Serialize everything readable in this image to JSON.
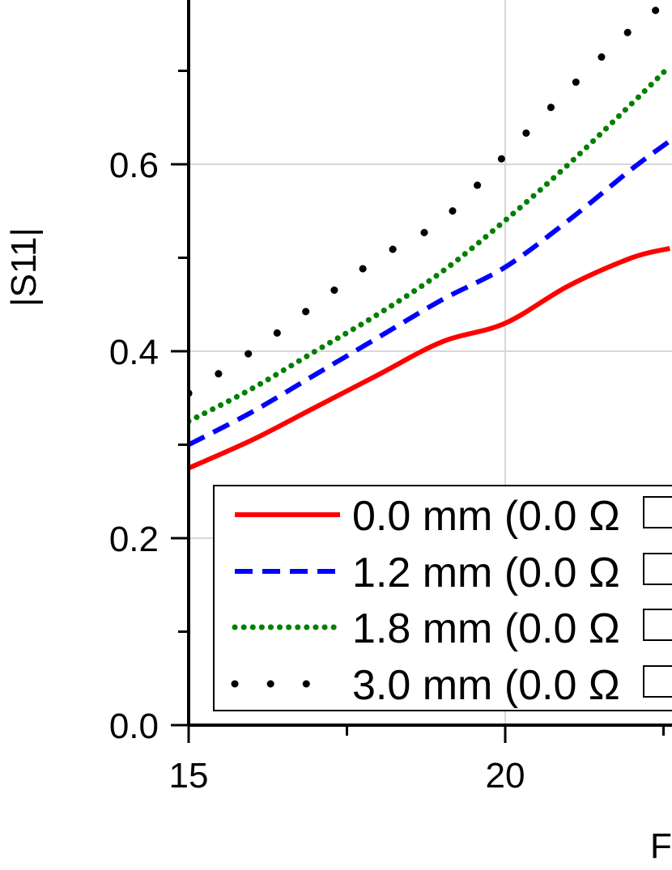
{
  "chart_data": {
    "type": "line",
    "title": "",
    "xlabel": "F",
    "ylabel": "|S11|",
    "xlim": [
      15,
      22.6
    ],
    "ylim": [
      0.0,
      0.77
    ],
    "x_ticks": [
      15,
      20
    ],
    "x_tick_labels": [
      "15",
      "20"
    ],
    "x_minor_ticks": [
      17.5,
      22.5
    ],
    "y_ticks": [
      0.0,
      0.2,
      0.4,
      0.6
    ],
    "y_tick_labels": [
      "0.0",
      "0.2",
      "0.4",
      "0.6"
    ],
    "y_minor_ticks": [
      0.1,
      0.3,
      0.5,
      0.7
    ],
    "grid": true,
    "legend_position": "bottom-right",
    "series": [
      {
        "name": "0.0 mm (0.0 Ω",
        "color": "#ff0000",
        "style": "solid",
        "x": [
          15,
          16,
          17,
          18,
          19,
          20,
          21,
          22,
          22.6
        ],
        "y": [
          0.275,
          0.305,
          0.34,
          0.375,
          0.41,
          0.43,
          0.47,
          0.5,
          0.51
        ]
      },
      {
        "name": "1.2 mm (0.0 Ω",
        "color": "#0000ff",
        "style": "dash",
        "x": [
          15,
          16,
          17,
          18,
          19,
          20,
          21,
          22,
          22.6
        ],
        "y": [
          0.3,
          0.335,
          0.375,
          0.415,
          0.455,
          0.49,
          0.54,
          0.595,
          0.625
        ]
      },
      {
        "name": "1.8 mm (0.0 Ω",
        "color": "#008000",
        "style": "dot",
        "x": [
          15,
          16,
          17,
          18,
          19,
          20,
          21,
          22,
          22.6
        ],
        "y": [
          0.325,
          0.36,
          0.4,
          0.44,
          0.485,
          0.54,
          0.6,
          0.665,
          0.705
        ]
      },
      {
        "name": "3.0 mm (0.0 Ω",
        "color": "#000000",
        "style": "sparse-dot",
        "x": [
          15,
          16,
          17,
          18,
          19,
          20,
          21,
          22,
          22.6
        ],
        "y": [
          0.355,
          0.4,
          0.45,
          0.5,
          0.54,
          0.61,
          0.68,
          0.745,
          0.775
        ]
      }
    ]
  }
}
